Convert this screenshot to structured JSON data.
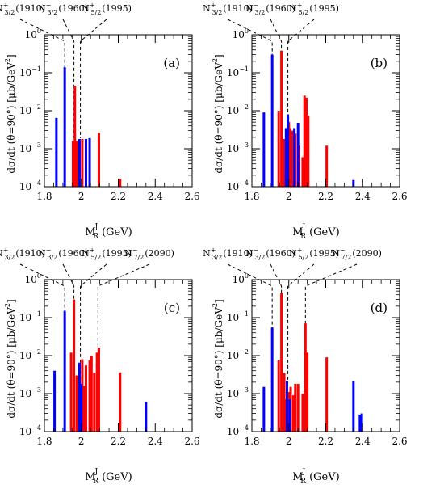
{
  "resonance_labels": {
    "N3p_1910": {
      "base": "N",
      "sup": "+",
      "sub": "3/2",
      "tail": "(1910)"
    },
    "N3m_1960": {
      "base": "N",
      "sup": "−",
      "sub": "3/2",
      "tail": "(1960)"
    },
    "N5p_1995": {
      "base": "N",
      "sup": "+",
      "sub": "5/2",
      "tail": "(1995)"
    },
    "N7m_2090": {
      "base": "N",
      "sup": "−",
      "sub": "7/2",
      "tail": "(2090)"
    }
  },
  "axis_text": {
    "ylabel_main": "dσ/dt (θ=90°)",
    "ylabel_unit_open": "[μb/GeV",
    "ylabel_unit_sup": "2",
    "ylabel_unit_close": "]",
    "xlabel_base": "M",
    "xlabel_sub": "R",
    "xlabel_sup": "J",
    "xlabel_unit": "(GeV)",
    "ytick_base": "10",
    "yticks_exp": [
      "−4",
      "−3",
      "−2",
      "−1",
      "0"
    ],
    "xticks": [
      "1.8",
      "2",
      "2.2",
      "2.4",
      "2.6"
    ]
  },
  "colors": {
    "blue": "#0000ff",
    "red": "#ff0000",
    "axis": "#000000"
  },
  "chart_data": [
    {
      "type": "bar",
      "panel": "(a)",
      "x_scale": "linear",
      "y_scale": "log",
      "xlim": [
        1.8,
        2.6
      ],
      "ylim": [
        0.0001,
        1
      ],
      "grid": false,
      "resonance_markers": [
        {
          "label": "N3p_1910",
          "mass": 1.91
        },
        {
          "label": "N3m_1960",
          "mass": 1.96
        },
        {
          "label": "N5p_1995",
          "mass": 1.995
        }
      ],
      "blue_bars": [
        [
          1.865,
          0.0065
        ],
        [
          1.91,
          0.14
        ],
        [
          1.99,
          0.0018
        ],
        [
          2.025,
          0.0018
        ],
        [
          2.045,
          0.0019
        ]
      ],
      "red_bars": [
        [
          1.955,
          0.0016
        ],
        [
          1.965,
          0.045
        ],
        [
          1.975,
          0.0016
        ],
        [
          2.005,
          0.0018
        ],
        [
          2.095,
          0.0026
        ],
        [
          2.21,
          0.00016
        ]
      ]
    },
    {
      "type": "bar",
      "panel": "(b)",
      "x_scale": "linear",
      "y_scale": "log",
      "xlim": [
        1.8,
        2.6
      ],
      "ylim": [
        0.0001,
        1
      ],
      "grid": false,
      "resonance_markers": [
        {
          "label": "N3p_1910",
          "mass": 1.91
        },
        {
          "label": "N3m_1960",
          "mass": 1.96
        },
        {
          "label": "N5p_1995",
          "mass": 1.995
        }
      ],
      "blue_bars": [
        [
          1.865,
          0.009
        ],
        [
          1.91,
          0.3
        ],
        [
          1.985,
          0.0035
        ],
        [
          1.995,
          0.008
        ],
        [
          2.03,
          0.0035
        ],
        [
          2.05,
          0.0048
        ],
        [
          2.35,
          0.00015
        ]
      ],
      "red_bars": [
        [
          1.945,
          0.01
        ],
        [
          1.96,
          0.38
        ],
        [
          1.975,
          0.0018
        ],
        [
          2.0,
          0.005
        ],
        [
          2.005,
          0.0035
        ],
        [
          2.02,
          0.003
        ],
        [
          2.035,
          0.0025
        ],
        [
          2.055,
          0.0012
        ],
        [
          2.075,
          0.0006
        ],
        [
          2.085,
          0.025
        ],
        [
          2.095,
          0.022
        ],
        [
          2.105,
          0.0075
        ],
        [
          2.205,
          0.0012
        ]
      ]
    },
    {
      "type": "bar",
      "panel": "(c)",
      "x_scale": "linear",
      "y_scale": "log",
      "xlim": [
        1.8,
        2.6
      ],
      "ylim": [
        0.0001,
        1
      ],
      "grid": false,
      "resonance_markers": [
        {
          "label": "N3p_1910",
          "mass": 1.91
        },
        {
          "label": "N3m_1960",
          "mass": 1.96
        },
        {
          "label": "N5p_1995",
          "mass": 1.995
        },
        {
          "label": "N7m_2090",
          "mass": 2.09
        }
      ],
      "blue_bars": [
        [
          1.855,
          0.004
        ],
        [
          1.91,
          0.15
        ],
        [
          1.99,
          0.0065
        ],
        [
          2.0,
          0.0018
        ],
        [
          2.35,
          0.0006
        ]
      ],
      "red_bars": [
        [
          1.945,
          0.012
        ],
        [
          1.96,
          0.3
        ],
        [
          1.975,
          0.003
        ],
        [
          2.005,
          0.008
        ],
        [
          2.015,
          0.0016
        ],
        [
          2.025,
          0.0055
        ],
        [
          2.045,
          0.0075
        ],
        [
          2.055,
          0.01
        ],
        [
          2.07,
          0.0035
        ],
        [
          2.085,
          0.012
        ],
        [
          2.095,
          0.016
        ],
        [
          2.21,
          0.0036
        ]
      ]
    },
    {
      "type": "bar",
      "panel": "(d)",
      "x_scale": "linear",
      "y_scale": "log",
      "xlim": [
        1.8,
        2.6
      ],
      "ylim": [
        0.0001,
        1
      ],
      "grid": false,
      "resonance_markers": [
        {
          "label": "N3p_1910",
          "mass": 1.91
        },
        {
          "label": "N3m_1960",
          "mass": 1.96
        },
        {
          "label": "N5p_1995",
          "mass": 1.995
        },
        {
          "label": "N7m_2090",
          "mass": 2.09
        }
      ],
      "blue_bars": [
        [
          1.865,
          0.0015
        ],
        [
          1.91,
          0.055
        ],
        [
          1.99,
          0.0022
        ],
        [
          2.005,
          0.0007
        ],
        [
          2.35,
          0.0021
        ],
        [
          2.385,
          0.00028
        ],
        [
          2.395,
          0.0003
        ]
      ],
      "red_bars": [
        [
          1.945,
          0.0075
        ],
        [
          1.96,
          0.45
        ],
        [
          1.975,
          0.0035
        ],
        [
          1.985,
          0.0007
        ],
        [
          2.0,
          0.0011
        ],
        [
          2.01,
          0.0015
        ],
        [
          2.025,
          0.0009
        ],
        [
          2.035,
          0.0018
        ],
        [
          2.05,
          0.0018
        ],
        [
          2.075,
          0.001
        ],
        [
          2.09,
          0.07
        ],
        [
          2.1,
          0.012
        ],
        [
          2.205,
          0.009
        ]
      ]
    }
  ]
}
